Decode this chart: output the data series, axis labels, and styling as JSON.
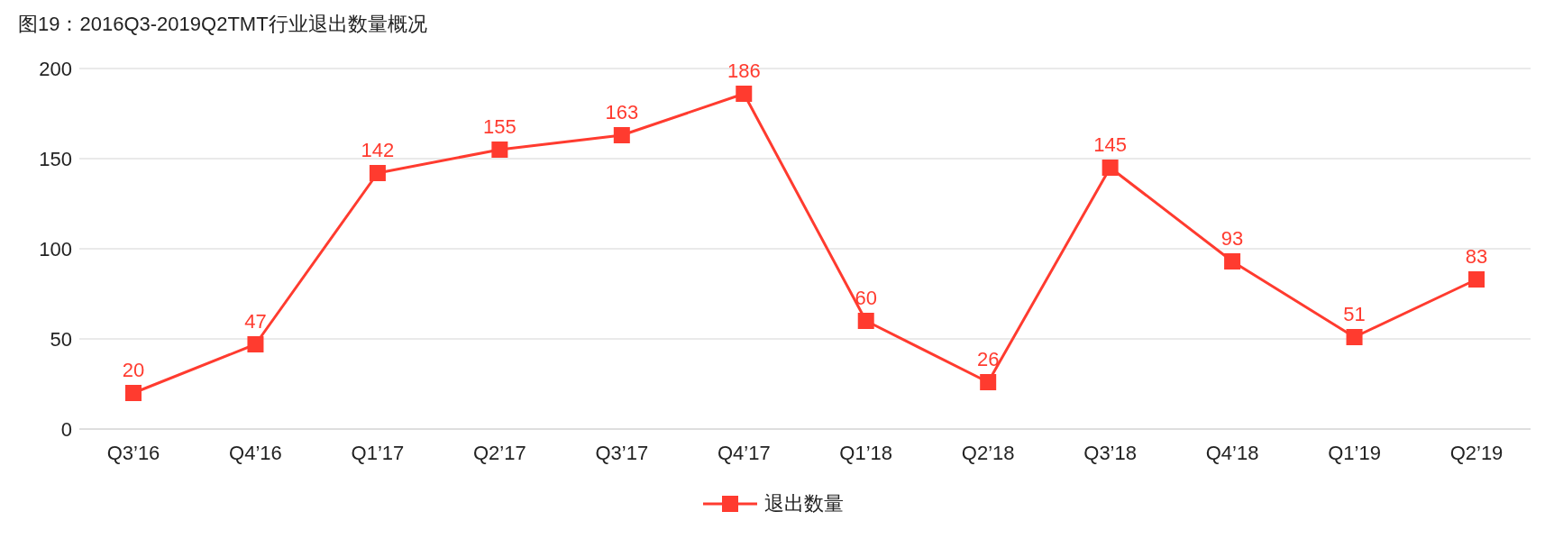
{
  "chart_data": {
    "type": "line",
    "title": "图19：2016Q3-2019Q2TMT行业退出数量概况",
    "categories": [
      "Q3’16",
      "Q4’16",
      "Q1’17",
      "Q2’17",
      "Q3’17",
      "Q4’17",
      "Q1’18",
      "Q2’18",
      "Q3’18",
      "Q4’18",
      "Q1’19",
      "Q2’19"
    ],
    "series": [
      {
        "name": "退出数量",
        "color": "#ff3b2f",
        "values": [
          20,
          47,
          142,
          155,
          163,
          186,
          60,
          26,
          145,
          93,
          51,
          83
        ]
      }
    ],
    "ylim": [
      0,
      200
    ],
    "yticks": [
      0,
      50,
      100,
      150,
      200
    ],
    "grid": "y",
    "legend": "bottom",
    "marker": "square",
    "line_style": "solid",
    "data_labels": true
  }
}
